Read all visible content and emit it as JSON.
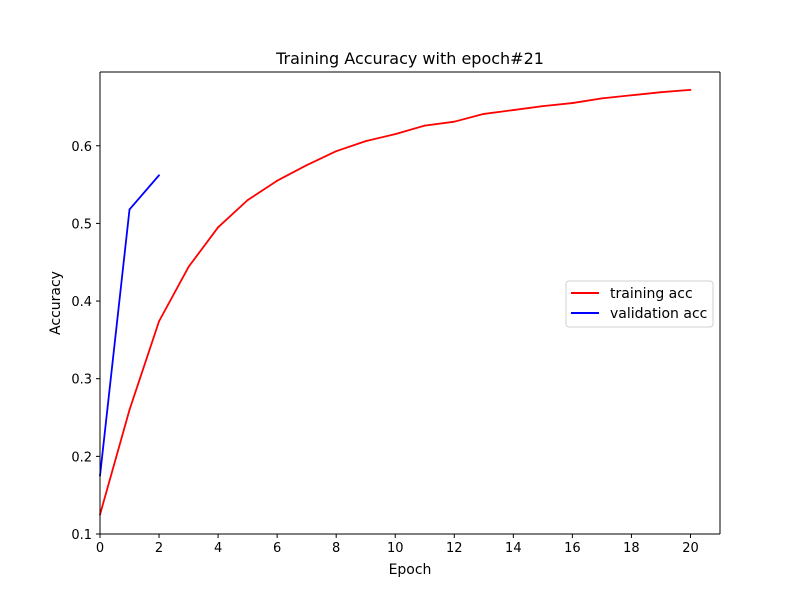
{
  "chart_data": {
    "type": "line",
    "title": "Training Accuracy with epoch#21",
    "xlabel": "Epoch",
    "ylabel": "Accuracy",
    "xlim": [
      0,
      21
    ],
    "ylim": [
      0.1,
      0.695
    ],
    "xticks": [
      0,
      2,
      4,
      6,
      8,
      10,
      12,
      14,
      16,
      18,
      20
    ],
    "yticks": [
      0.1,
      0.2,
      0.3,
      0.4,
      0.5,
      0.6
    ],
    "xtick_labels": [
      "0",
      "2",
      "4",
      "6",
      "8",
      "10",
      "12",
      "14",
      "16",
      "18",
      "20"
    ],
    "ytick_labels": [
      "0.1",
      "0.2",
      "0.3",
      "0.4",
      "0.5",
      "0.6"
    ],
    "grid": false,
    "legend_position": "center-right",
    "series": [
      {
        "name": "training acc",
        "color": "#ff0000",
        "x": [
          0,
          1,
          2,
          3,
          4,
          5,
          6,
          7,
          8,
          9,
          10,
          11,
          12,
          13,
          14,
          15,
          16,
          17,
          18,
          19,
          20
        ],
        "values": [
          0.125,
          0.26,
          0.374,
          0.444,
          0.495,
          0.53,
          0.555,
          0.575,
          0.593,
          0.606,
          0.615,
          0.626,
          0.631,
          0.641,
          0.646,
          0.651,
          0.655,
          0.661,
          0.665,
          0.669,
          0.672
        ]
      },
      {
        "name": "validation acc",
        "color": "#0000ff",
        "x": [
          0,
          1,
          2
        ],
        "values": [
          0.175,
          0.518,
          0.562
        ]
      }
    ]
  }
}
